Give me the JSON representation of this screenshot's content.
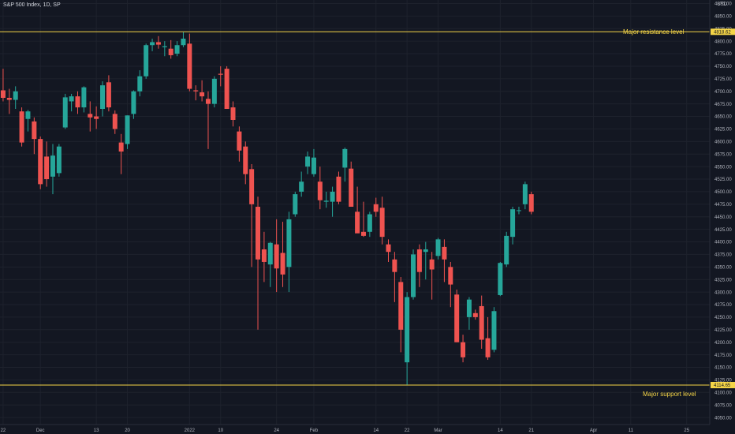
{
  "chart_data": {
    "type": "candlestick",
    "title": "S&P 500 Index, 1D, SP",
    "currency": "USD",
    "y_ticks": [
      4050,
      4075,
      4100,
      4125,
      4150,
      4175,
      4200,
      4225,
      4250,
      4275,
      4300,
      4325,
      4350,
      4375,
      4400,
      4425,
      4450,
      4475,
      4500,
      4525,
      4550,
      4575,
      4600,
      4625,
      4650,
      4675,
      4700,
      4725,
      4750,
      4775,
      4800,
      4825,
      4850,
      4875
    ],
    "y_tick_labels": [
      "4050.00",
      "4075.00",
      "4100.00",
      "4125.00",
      "4150.00",
      "4175.00",
      "4200.00",
      "4225.00",
      "4250.00",
      "4275.00",
      "4300.00",
      "4325.00",
      "4350.00",
      "4375.00",
      "4400.00",
      "4425.00",
      "4450.00",
      "4475.00",
      "4500.00",
      "4525.00",
      "4550.00",
      "4575.00",
      "4600.00",
      "4625.00",
      "4650.00",
      "4675.00",
      "4700.00",
      "4725.00",
      "4750.00",
      "4775.00",
      "4800.00",
      "4825.00",
      "4850.00",
      "4875.00"
    ],
    "ylim": [
      4036,
      4882
    ],
    "x_labels": [
      {
        "label": "22",
        "slot": 0.5
      },
      {
        "label": "Dec",
        "slot": 6.5
      },
      {
        "label": "13",
        "slot": 15.5
      },
      {
        "label": "20",
        "slot": 20.5
      },
      {
        "label": "2022",
        "slot": 30.5
      },
      {
        "label": "10",
        "slot": 35.5
      },
      {
        "label": "24",
        "slot": 44.5
      },
      {
        "label": "Feb",
        "slot": 50.5
      },
      {
        "label": "14",
        "slot": 60.5
      },
      {
        "label": "22",
        "slot": 65.5
      },
      {
        "label": "Mar",
        "slot": 70.5
      },
      {
        "label": "14",
        "slot": 80.5
      },
      {
        "label": "21",
        "slot": 85.5
      },
      {
        "label": "Apr",
        "slot": 95.5
      },
      {
        "label": "11",
        "slot": 101.5
      },
      {
        "label": "25",
        "slot": 110.5
      }
    ],
    "slots": 112,
    "horizontal_levels": [
      {
        "value": 4818.62,
        "label": "4818.62",
        "annotation": "Major resistance level",
        "color": "#f5d547"
      },
      {
        "value": 4114.65,
        "label": "4114.65",
        "annotation": "Major support level",
        "color": "#f5d547"
      }
    ],
    "colors": {
      "up": "#26a69a",
      "down": "#ef5350",
      "grid": "#1e222d",
      "background": "#131722"
    },
    "candles": [
      {
        "o": 4702,
        "h": 4745,
        "l": 4680,
        "c": 4687
      },
      {
        "o": 4687,
        "h": 4705,
        "l": 4655,
        "c": 4683
      },
      {
        "o": 4683,
        "h": 4710,
        "l": 4665,
        "c": 4700
      },
      {
        "o": 4660,
        "h": 4668,
        "l": 4590,
        "c": 4598
      },
      {
        "o": 4645,
        "h": 4663,
        "l": 4620,
        "c": 4660
      },
      {
        "o": 4640,
        "h": 4648,
        "l": 4575,
        "c": 4605
      },
      {
        "o": 4605,
        "h": 4610,
        "l": 4505,
        "c": 4515
      },
      {
        "o": 4570,
        "h": 4600,
        "l": 4510,
        "c": 4525
      },
      {
        "o": 4530,
        "h": 4595,
        "l": 4495,
        "c": 4572
      },
      {
        "o": 4537,
        "h": 4595,
        "l": 4530,
        "c": 4590
      },
      {
        "o": 4628,
        "h": 4695,
        "l": 4625,
        "c": 4688
      },
      {
        "o": 4680,
        "h": 4695,
        "l": 4660,
        "c": 4690
      },
      {
        "o": 4690,
        "h": 4700,
        "l": 4655,
        "c": 4668
      },
      {
        "o": 4668,
        "h": 4710,
        "l": 4658,
        "c": 4708
      },
      {
        "o": 4655,
        "h": 4680,
        "l": 4620,
        "c": 4648
      },
      {
        "o": 4650,
        "h": 4670,
        "l": 4625,
        "c": 4645
      },
      {
        "o": 4665,
        "h": 4720,
        "l": 4650,
        "c": 4712
      },
      {
        "o": 4718,
        "h": 4732,
        "l": 4660,
        "c": 4668
      },
      {
        "o": 4655,
        "h": 4662,
        "l": 4615,
        "c": 4625
      },
      {
        "o": 4598,
        "h": 4615,
        "l": 4535,
        "c": 4580
      },
      {
        "o": 4595,
        "h": 4652,
        "l": 4585,
        "c": 4652
      },
      {
        "o": 4655,
        "h": 4702,
        "l": 4645,
        "c": 4700
      },
      {
        "o": 4700,
        "h": 4742,
        "l": 4690,
        "c": 4730
      },
      {
        "o": 4730,
        "h": 4795,
        "l": 4725,
        "c": 4792
      },
      {
        "o": 4792,
        "h": 4805,
        "l": 4780,
        "c": 4798
      },
      {
        "o": 4798,
        "h": 4810,
        "l": 4785,
        "c": 4793
      },
      {
        "o": 4788,
        "h": 4800,
        "l": 4770,
        "c": 4790
      },
      {
        "o": 4785,
        "h": 4802,
        "l": 4765,
        "c": 4772
      },
      {
        "o": 4775,
        "h": 4800,
        "l": 4770,
        "c": 4792
      },
      {
        "o": 4792,
        "h": 4818,
        "l": 4788,
        "c": 4805
      },
      {
        "o": 4795,
        "h": 4815,
        "l": 4700,
        "c": 4705
      },
      {
        "o": 4702,
        "h": 4712,
        "l": 4682,
        "c": 4700
      },
      {
        "o": 4698,
        "h": 4722,
        "l": 4680,
        "c": 4690
      },
      {
        "o": 4685,
        "h": 4700,
        "l": 4585,
        "c": 4675
      },
      {
        "o": 4675,
        "h": 4730,
        "l": 4668,
        "c": 4725
      },
      {
        "o": 4735,
        "h": 4750,
        "l": 4710,
        "c": 4733
      },
      {
        "o": 4745,
        "h": 4750,
        "l": 4670,
        "c": 4665
      },
      {
        "o": 4668,
        "h": 4680,
        "l": 4630,
        "c": 4643
      },
      {
        "o": 4620,
        "h": 4630,
        "l": 4560,
        "c": 4582
      },
      {
        "o": 4590,
        "h": 4600,
        "l": 4515,
        "c": 4535
      },
      {
        "o": 4545,
        "h": 4555,
        "l": 4350,
        "c": 4475
      },
      {
        "o": 4470,
        "h": 4490,
        "l": 4225,
        "c": 4365
      },
      {
        "o": 4385,
        "h": 4420,
        "l": 4320,
        "c": 4360
      },
      {
        "o": 4355,
        "h": 4400,
        "l": 4310,
        "c": 4398
      },
      {
        "o": 4395,
        "h": 4445,
        "l": 4300,
        "c": 4347
      },
      {
        "o": 4378,
        "h": 4440,
        "l": 4310,
        "c": 4335
      },
      {
        "o": 4350,
        "h": 4460,
        "l": 4300,
        "c": 4445
      },
      {
        "o": 4455,
        "h": 4500,
        "l": 4450,
        "c": 4495
      },
      {
        "o": 4500,
        "h": 4540,
        "l": 4490,
        "c": 4520
      },
      {
        "o": 4550,
        "h": 4580,
        "l": 4535,
        "c": 4570
      },
      {
        "o": 4535,
        "h": 4585,
        "l": 4530,
        "c": 4568
      },
      {
        "o": 4520,
        "h": 4550,
        "l": 4465,
        "c": 4483
      },
      {
        "o": 4480,
        "h": 4500,
        "l": 4468,
        "c": 4482
      },
      {
        "o": 4480,
        "h": 4510,
        "l": 4450,
        "c": 4500
      },
      {
        "o": 4530,
        "h": 4540,
        "l": 4475,
        "c": 4480
      },
      {
        "o": 4548,
        "h": 4588,
        "l": 4520,
        "c": 4585
      },
      {
        "o": 4546,
        "h": 4560,
        "l": 4470,
        "c": 4470
      },
      {
        "o": 4460,
        "h": 4510,
        "l": 4420,
        "c": 4417
      },
      {
        "o": 4420,
        "h": 4480,
        "l": 4410,
        "c": 4412
      },
      {
        "o": 4420,
        "h": 4460,
        "l": 4410,
        "c": 4455
      },
      {
        "o": 4475,
        "h": 4488,
        "l": 4450,
        "c": 4460
      },
      {
        "o": 4468,
        "h": 4490,
        "l": 4395,
        "c": 4410
      },
      {
        "o": 4395,
        "h": 4405,
        "l": 4360,
        "c": 4380
      },
      {
        "o": 4365,
        "h": 4380,
        "l": 4280,
        "c": 4340
      },
      {
        "o": 4320,
        "h": 4330,
        "l": 4180,
        "c": 4225
      },
      {
        "o": 4160,
        "h": 4300,
        "l": 4115,
        "c": 4290
      },
      {
        "o": 4290,
        "h": 4385,
        "l": 4285,
        "c": 4375
      },
      {
        "o": 4385,
        "h": 4395,
        "l": 4310,
        "c": 4340
      },
      {
        "o": 4380,
        "h": 4400,
        "l": 4325,
        "c": 4385
      },
      {
        "o": 4365,
        "h": 4380,
        "l": 4285,
        "c": 4345
      },
      {
        "o": 4372,
        "h": 4408,
        "l": 4365,
        "c": 4405
      },
      {
        "o": 4390,
        "h": 4405,
        "l": 4320,
        "c": 4365
      },
      {
        "o": 4350,
        "h": 4360,
        "l": 4270,
        "c": 4315
      },
      {
        "o": 4295,
        "h": 4305,
        "l": 4200,
        "c": 4200
      },
      {
        "o": 4200,
        "h": 4215,
        "l": 4160,
        "c": 4170
      },
      {
        "o": 4250,
        "h": 4290,
        "l": 4225,
        "c": 4285
      },
      {
        "o": 4258,
        "h": 4265,
        "l": 4245,
        "c": 4250
      },
      {
        "o": 4272,
        "h": 4293,
        "l": 4187,
        "c": 4205
      },
      {
        "o": 4208,
        "h": 4250,
        "l": 4165,
        "c": 4170
      },
      {
        "o": 4185,
        "h": 4270,
        "l": 4180,
        "c": 4262
      },
      {
        "o": 4294,
        "h": 4360,
        "l": 4292,
        "c": 4358
      },
      {
        "o": 4355,
        "h": 4420,
        "l": 4350,
        "c": 4412
      },
      {
        "o": 4410,
        "h": 4470,
        "l": 4395,
        "c": 4465
      },
      {
        "o": 4463,
        "h": 4470,
        "l": 4455,
        "c": 4463
      },
      {
        "o": 4475,
        "h": 4520,
        "l": 4465,
        "c": 4515
      },
      {
        "o": 4495,
        "h": 4500,
        "l": 4455,
        "c": 4460
      }
    ]
  }
}
